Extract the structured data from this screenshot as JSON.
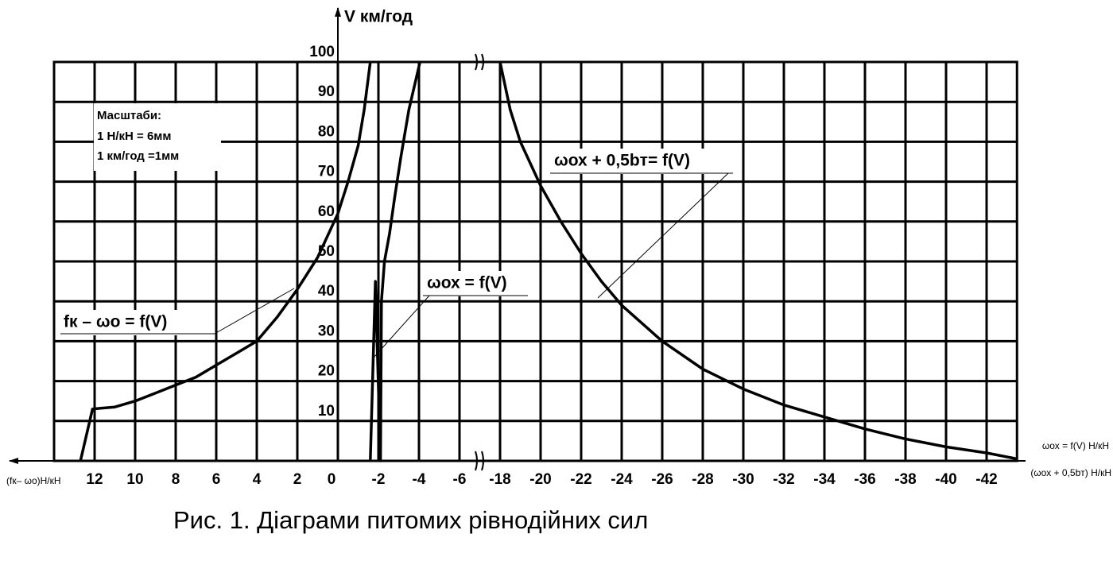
{
  "chart_data": {
    "type": "line",
    "title": "Рис. 1. Діаграми питомих рівнодійних сил",
    "ylabel": "V км/год",
    "xlabel_left": "(fк– ωо)Н/кН",
    "xlabel_right_top": "ωох = f(V) Н/кН",
    "xlabel_right_bottom": "(ωох + 0,5bт) Н/кН",
    "scale_note": [
      "Масштаби:",
      "1 Н/кН = 6мм",
      "1 км/год =1мм"
    ],
    "xlim": [
      14,
      -43.5
    ],
    "x_break": [
      -6,
      -18
    ],
    "xticks": [
      12,
      10,
      8,
      6,
      4,
      2,
      0,
      -2,
      -4,
      -6,
      -18,
      -20,
      -22,
      -24,
      -26,
      -28,
      -30,
      -32,
      -34,
      -36,
      -38,
      -40,
      -42
    ],
    "ylim": [
      0,
      100
    ],
    "yticks": [
      10,
      20,
      30,
      40,
      50,
      60,
      70,
      80,
      90,
      100
    ],
    "grid": true,
    "series": [
      {
        "name": "fк – ωо = f(V)",
        "color": "#000000",
        "x": [
          12.7,
          12.1,
          11,
          10,
          9,
          8,
          7,
          6,
          5,
          4,
          3,
          2,
          1,
          0,
          -0.5,
          -1,
          -1.3,
          -1.6
        ],
        "values": [
          0,
          13,
          13.5,
          15,
          17,
          19,
          21,
          24,
          27,
          30,
          36,
          43,
          51,
          62,
          70,
          79,
          88,
          100
        ]
      },
      {
        "name": "ωох = f(V)",
        "color": "#000000",
        "x": [
          -1.6,
          -1.85,
          -2.1,
          -2.15,
          -2.3,
          -2.55,
          -2.8,
          -3.1,
          -3.5,
          -4.05
        ],
        "values": [
          0,
          45,
          0,
          40,
          50,
          57,
          66,
          76,
          88,
          100
        ]
      },
      {
        "name": "ωох + 0,5bт= f(V)",
        "color": "#000000",
        "x": [
          -18,
          -18.5,
          -19,
          -20,
          -21,
          -22,
          -23,
          -24,
          -26,
          -28,
          -30,
          -32,
          -34,
          -36,
          -38,
          -40,
          -42,
          -43.5
        ],
        "values": [
          100,
          88,
          80,
          69,
          60,
          52,
          45,
          39,
          30,
          23,
          18,
          14,
          11,
          8,
          5.5,
          3.5,
          2,
          0.5
        ]
      }
    ]
  }
}
